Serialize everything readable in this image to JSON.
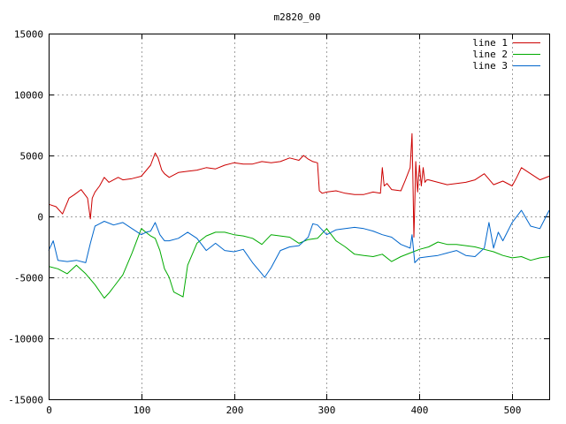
{
  "chart_data": {
    "type": "line",
    "title": "m2820_00",
    "xlabel": "",
    "ylabel": "",
    "xlim": [
      0,
      540
    ],
    "ylim": [
      -15000,
      15000
    ],
    "xticks": [
      0,
      100,
      200,
      300,
      400,
      500
    ],
    "yticks": [
      -15000,
      -10000,
      -5000,
      0,
      5000,
      10000,
      15000
    ],
    "grid": true,
    "legend_position": "top-right",
    "series": [
      {
        "name": "line 1",
        "color": "#cc0000",
        "x": [
          0,
          8,
          15,
          22,
          28,
          35,
          42,
          45,
          47,
          50,
          55,
          60,
          65,
          70,
          75,
          80,
          90,
          100,
          110,
          115,
          118,
          122,
          125,
          130,
          140,
          150,
          160,
          170,
          180,
          190,
          200,
          210,
          220,
          230,
          240,
          250,
          260,
          270,
          275,
          280,
          285,
          290,
          292,
          295,
          300,
          310,
          320,
          330,
          340,
          350,
          358,
          360,
          362,
          365,
          370,
          380,
          385,
          390,
          392,
          393,
          394,
          395,
          396,
          398,
          400,
          402,
          404,
          406,
          408,
          410,
          420,
          430,
          440,
          450,
          460,
          470,
          480,
          490,
          500,
          505,
          510,
          520,
          530,
          540
        ],
        "y": [
          1000,
          800,
          200,
          1500,
          1800,
          2200,
          1500,
          -200,
          1500,
          2000,
          2500,
          3200,
          2800,
          3000,
          3200,
          3000,
          3100,
          3300,
          4200,
          5200,
          4800,
          3800,
          3500,
          3200,
          3600,
          3700,
          3800,
          4000,
          3900,
          4200,
          4400,
          4300,
          4300,
          4500,
          4400,
          4500,
          4800,
          4600,
          5000,
          4700,
          4500,
          4400,
          2100,
          1900,
          2000,
          2100,
          1900,
          1800,
          1800,
          2000,
          1900,
          4000,
          2500,
          2700,
          2200,
          2100,
          3000,
          4000,
          6800,
          3000,
          -1700,
          1000,
          4500,
          2000,
          4200,
          2500,
          4000,
          2800,
          3000,
          3000,
          2800,
          2600,
          2700,
          2800,
          3000,
          3500,
          2600,
          2900,
          2500,
          3200,
          4000,
          3500,
          3000,
          3300
        ]
      },
      {
        "name": "line 2",
        "color": "#00aa00",
        "x": [
          0,
          10,
          20,
          30,
          40,
          50,
          60,
          65,
          70,
          80,
          90,
          100,
          110,
          115,
          120,
          125,
          130,
          135,
          140,
          145,
          150,
          160,
          170,
          180,
          190,
          200,
          210,
          220,
          230,
          240,
          250,
          260,
          270,
          280,
          290,
          300,
          310,
          320,
          330,
          340,
          350,
          360,
          370,
          380,
          390,
          400,
          410,
          420,
          430,
          440,
          450,
          460,
          470,
          480,
          490,
          500,
          510,
          520,
          530,
          540
        ],
        "y": [
          -4100,
          -4300,
          -4700,
          -4000,
          -4700,
          -5600,
          -6700,
          -6300,
          -5800,
          -4800,
          -3000,
          -1000,
          -1600,
          -1800,
          -2800,
          -4300,
          -5000,
          -6200,
          -6400,
          -6600,
          -4000,
          -2200,
          -1600,
          -1300,
          -1300,
          -1500,
          -1600,
          -1800,
          -2300,
          -1500,
          -1600,
          -1700,
          -2200,
          -1900,
          -1800,
          -1000,
          -2000,
          -2500,
          -3100,
          -3200,
          -3300,
          -3100,
          -3700,
          -3300,
          -3000,
          -2700,
          -2500,
          -2100,
          -2300,
          -2300,
          -2400,
          -2500,
          -2700,
          -2900,
          -3200,
          -3400,
          -3300,
          -3600,
          -3400,
          -3300
        ]
      },
      {
        "name": "line 3",
        "color": "#0066cc",
        "x": [
          0,
          5,
          10,
          20,
          30,
          40,
          45,
          50,
          55,
          60,
          70,
          80,
          90,
          100,
          105,
          110,
          115,
          120,
          125,
          130,
          140,
          150,
          160,
          170,
          180,
          190,
          200,
          210,
          220,
          230,
          233,
          240,
          250,
          260,
          270,
          280,
          285,
          290,
          300,
          310,
          320,
          330,
          340,
          350,
          360,
          370,
          380,
          390,
          392,
          395,
          400,
          410,
          420,
          430,
          440,
          450,
          460,
          470,
          475,
          480,
          485,
          490,
          500,
          510,
          520,
          530,
          540
        ],
        "y": [
          -2800,
          -2000,
          -3600,
          -3700,
          -3600,
          -3800,
          -2200,
          -800,
          -600,
          -400,
          -700,
          -500,
          -1000,
          -1500,
          -1300,
          -1200,
          -500,
          -1500,
          -2000,
          -2000,
          -1800,
          -1300,
          -1800,
          -2800,
          -2200,
          -2800,
          -2900,
          -2700,
          -3800,
          -4700,
          -5000,
          -4200,
          -2800,
          -2500,
          -2400,
          -1700,
          -600,
          -700,
          -1500,
          -1100,
          -1000,
          -900,
          -1000,
          -1200,
          -1500,
          -1700,
          -2300,
          -2600,
          -1500,
          -3800,
          -3400,
          -3300,
          -3200,
          -3000,
          -2800,
          -3200,
          -3300,
          -2600,
          -500,
          -2600,
          -1300,
          -2000,
          -500,
          500,
          -800,
          -1000,
          500
        ]
      }
    ]
  }
}
